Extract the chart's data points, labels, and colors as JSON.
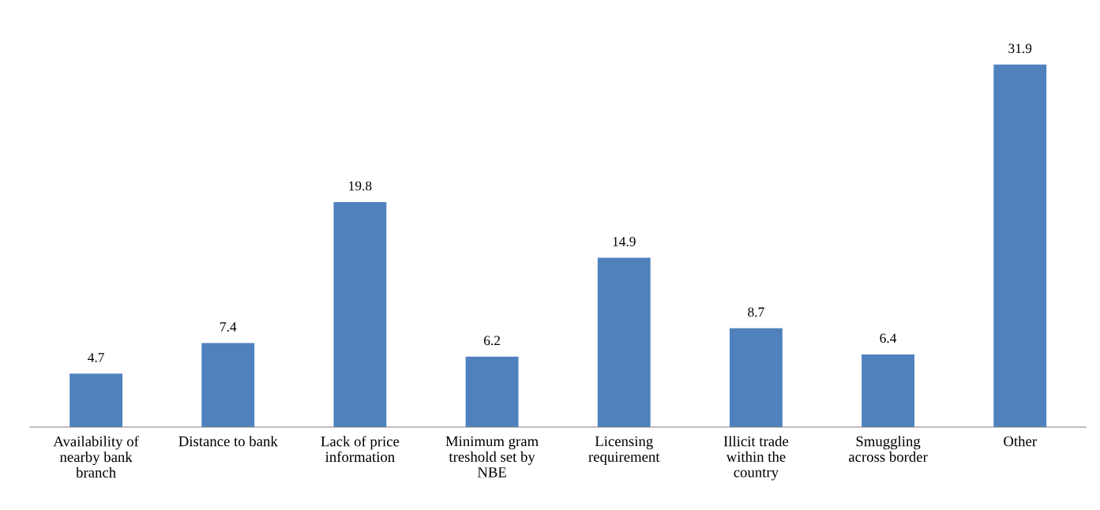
{
  "chart_data": {
    "type": "bar",
    "categories": [
      "Availability of\nnearby bank\nbranch",
      "Distance to bank",
      "Lack of price\ninformation",
      "Minimum gram\ntreshold set by\nNBE",
      "Licensing\nrequirement",
      "Illicit trade\nwithin the\ncountry",
      "Smuggling\nacross border",
      "Other"
    ],
    "values": [
      4.7,
      7.4,
      19.8,
      6.2,
      14.9,
      8.7,
      6.4,
      31.9
    ],
    "color": "#4f81bd",
    "data_labels": true,
    "grid": false,
    "legend": false
  }
}
